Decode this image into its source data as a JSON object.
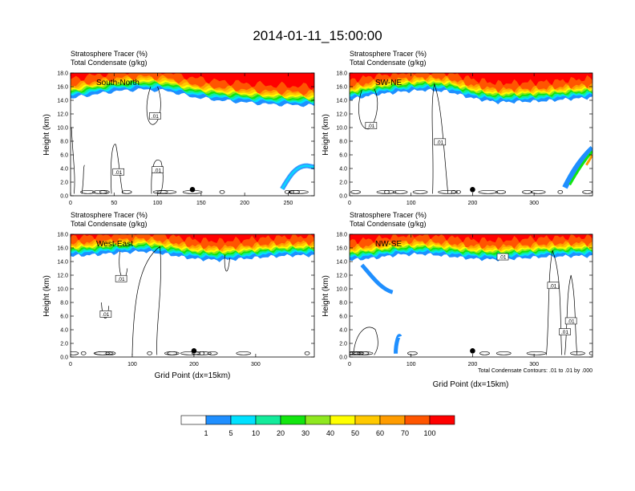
{
  "title": "2014-01-11_15:00:00",
  "colors": {
    "scale": [
      "#ffffff",
      "#1f8fff",
      "#00e1ff",
      "#13eb9b",
      "#12e60f",
      "#8fe81f",
      "#ffff00",
      "#ffc900",
      "#ff9c00",
      "#ff5500",
      "#ff0000"
    ],
    "contour": "#000000",
    "background": "#ffffff"
  },
  "chart_data": [
    {
      "type": "heatmap",
      "label": "South-North",
      "headers": [
        "Stratosphere Tracer   (%)",
        "Total Condensate   (g/kg)"
      ],
      "xlabel": "",
      "ylabel": "Height (km)",
      "xlim": [
        0,
        280
      ],
      "ylim": [
        0,
        18
      ],
      "xticks": [
        0,
        50,
        100,
        150,
        200,
        250
      ],
      "yticks": [
        "0.0",
        "2.0",
        "4.0",
        "6.0",
        "8.0",
        "10.0",
        "12.0",
        "14.0",
        "16.0",
        "18.0"
      ],
      "tropopause_km": [
        [
          0,
          15.2
        ],
        [
          20,
          15.6
        ],
        [
          50,
          16.2
        ],
        [
          80,
          16.5
        ],
        [
          110,
          16.3
        ],
        [
          140,
          15.4
        ],
        [
          170,
          14.9
        ],
        [
          200,
          14.6
        ],
        [
          230,
          14.3
        ],
        [
          260,
          14.2
        ],
        [
          280,
          14.1
        ]
      ],
      "contour_labels": [
        {
          "text": ".01",
          "x": 97,
          "y": 11.7
        },
        {
          "text": ".01",
          "x": 55,
          "y": 3.5
        },
        {
          "text": ".01",
          "x": 100,
          "y": 3.8
        }
      ],
      "marker": {
        "x": 140,
        "y": 0.9
      }
    },
    {
      "type": "heatmap",
      "label": "SW-NE",
      "headers": [
        "Stratosphere Tracer   (%)",
        "Total Condensate   (g/kg)"
      ],
      "xlabel": "",
      "ylabel": "Height (km)",
      "xlim": [
        0,
        395
      ],
      "ylim": [
        0,
        18
      ],
      "xticks": [
        0,
        100,
        200,
        300
      ],
      "yticks": [
        "0.0",
        "2.0",
        "4.0",
        "6.0",
        "8.0",
        "10.0",
        "12.0",
        "14.0",
        "16.0",
        "18.0"
      ],
      "tropopause_km": [
        [
          0,
          15.0
        ],
        [
          40,
          15.7
        ],
        [
          80,
          16.1
        ],
        [
          120,
          16.4
        ],
        [
          160,
          16.2
        ],
        [
          200,
          15.2
        ],
        [
          240,
          14.6
        ],
        [
          280,
          14.7
        ],
        [
          320,
          14.8
        ],
        [
          360,
          15.1
        ],
        [
          395,
          15.3
        ]
      ],
      "contour_labels": [
        {
          "text": ".01",
          "x": 35,
          "y": 10.3
        },
        {
          "text": ".01",
          "x": 147,
          "y": 7.9
        }
      ],
      "marker": {
        "x": 200,
        "y": 0.9
      }
    },
    {
      "type": "heatmap",
      "label": "West-East",
      "headers": [
        "Stratosphere Tracer   (%)",
        "Total Condensate   (g/kg)"
      ],
      "xlabel": "Grid Point (dx=15km)",
      "ylabel": "Height (km)",
      "xlim": [
        0,
        395
      ],
      "ylim": [
        0,
        18
      ],
      "xticks": [
        0,
        100,
        200,
        300
      ],
      "yticks": [
        "0.0",
        "2.0",
        "4.0",
        "6.0",
        "8.0",
        "10.0",
        "12.0",
        "14.0",
        "16.0",
        "18.0"
      ],
      "tropopause_km": [
        [
          0,
          15.7
        ],
        [
          40,
          15.9
        ],
        [
          80,
          16.2
        ],
        [
          120,
          16.4
        ],
        [
          160,
          15.9
        ],
        [
          200,
          15.3
        ],
        [
          240,
          15.1
        ],
        [
          280,
          15.3
        ],
        [
          320,
          15.6
        ],
        [
          360,
          15.8
        ],
        [
          395,
          15.8
        ]
      ],
      "contour_labels": [
        {
          "text": ".01",
          "x": 82,
          "y": 11.5
        },
        {
          "text": ".01",
          "x": 57,
          "y": 6.3
        }
      ],
      "marker": {
        "x": 200,
        "y": 0.9
      }
    },
    {
      "type": "heatmap",
      "label": "NW-SE",
      "headers": [
        "Stratosphere Tracer   (%)",
        "Total Condensate   (g/kg)"
      ],
      "xlabel": "Grid Point (dx=15km)",
      "ylabel": "Height (km)",
      "xlim": [
        0,
        395
      ],
      "ylim": [
        0,
        18
      ],
      "xticks": [
        0,
        100,
        200,
        300
      ],
      "yticks": [
        "0.0",
        "2.0",
        "4.0",
        "6.0",
        "8.0",
        "10.0",
        "12.0",
        "14.0",
        "16.0",
        "18.0"
      ],
      "tropopause_km": [
        [
          0,
          15.1
        ],
        [
          40,
          15.4
        ],
        [
          80,
          15.9
        ],
        [
          120,
          16.0
        ],
        [
          160,
          15.7
        ],
        [
          200,
          15.3
        ],
        [
          240,
          15.2
        ],
        [
          280,
          15.4
        ],
        [
          320,
          15.6
        ],
        [
          360,
          15.7
        ],
        [
          395,
          15.7
        ]
      ],
      "contour_labels": [
        {
          "text": ".01",
          "x": 249,
          "y": 14.7
        },
        {
          "text": ".01",
          "x": 331,
          "y": 10.5
        },
        {
          "text": ".01",
          "x": 360,
          "y": 5.3
        },
        {
          "text": ".01",
          "x": 350,
          "y": 3.7
        }
      ],
      "marker": {
        "x": 200,
        "y": 0.9
      },
      "footnote": "Total Condensate Contours: .01 to .01 by .000"
    }
  ],
  "colorbar": {
    "labels": [
      "1",
      "5",
      "10",
      "20",
      "30",
      "40",
      "50",
      "60",
      "70",
      "100"
    ]
  }
}
